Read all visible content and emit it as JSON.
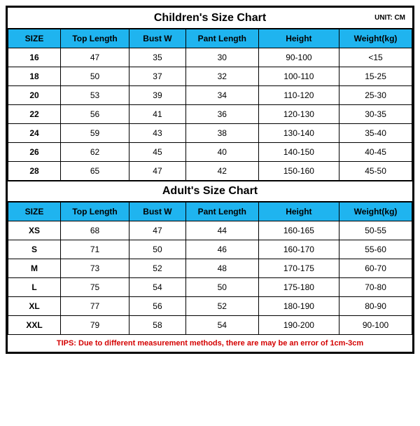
{
  "colors": {
    "header_bg": "#1fb4ef",
    "tips_color": "#d40000",
    "border": "#000000",
    "bg": "#ffffff"
  },
  "children": {
    "title": "Children's Size Chart",
    "unit": "UNIT: CM",
    "columns": [
      "SIZE",
      "Top Length",
      "Bust W",
      "Pant Length",
      "Height",
      "Weight(kg)"
    ],
    "rows": [
      [
        "16",
        "47",
        "35",
        "30",
        "90-100",
        "<15"
      ],
      [
        "18",
        "50",
        "37",
        "32",
        "100-110",
        "15-25"
      ],
      [
        "20",
        "53",
        "39",
        "34",
        "110-120",
        "25-30"
      ],
      [
        "22",
        "56",
        "41",
        "36",
        "120-130",
        "30-35"
      ],
      [
        "24",
        "59",
        "43",
        "38",
        "130-140",
        "35-40"
      ],
      [
        "26",
        "62",
        "45",
        "40",
        "140-150",
        "40-45"
      ],
      [
        "28",
        "65",
        "47",
        "42",
        "150-160",
        "45-50"
      ]
    ]
  },
  "adult": {
    "title": "Adult's Size Chart",
    "columns": [
      "SIZE",
      "Top Length",
      "Bust W",
      "Pant Length",
      "Height",
      "Weight(kg)"
    ],
    "rows": [
      [
        "XS",
        "68",
        "47",
        "44",
        "160-165",
        "50-55"
      ],
      [
        "S",
        "71",
        "50",
        "46",
        "160-170",
        "55-60"
      ],
      [
        "M",
        "73",
        "52",
        "48",
        "170-175",
        "60-70"
      ],
      [
        "L",
        "75",
        "54",
        "50",
        "175-180",
        "70-80"
      ],
      [
        "XL",
        "77",
        "56",
        "52",
        "180-190",
        "80-90"
      ],
      [
        "XXL",
        "79",
        "58",
        "54",
        "190-200",
        "90-100"
      ]
    ]
  },
  "tips": "TIPS: Due to different measurement methods, there are may be an error of 1cm-3cm"
}
